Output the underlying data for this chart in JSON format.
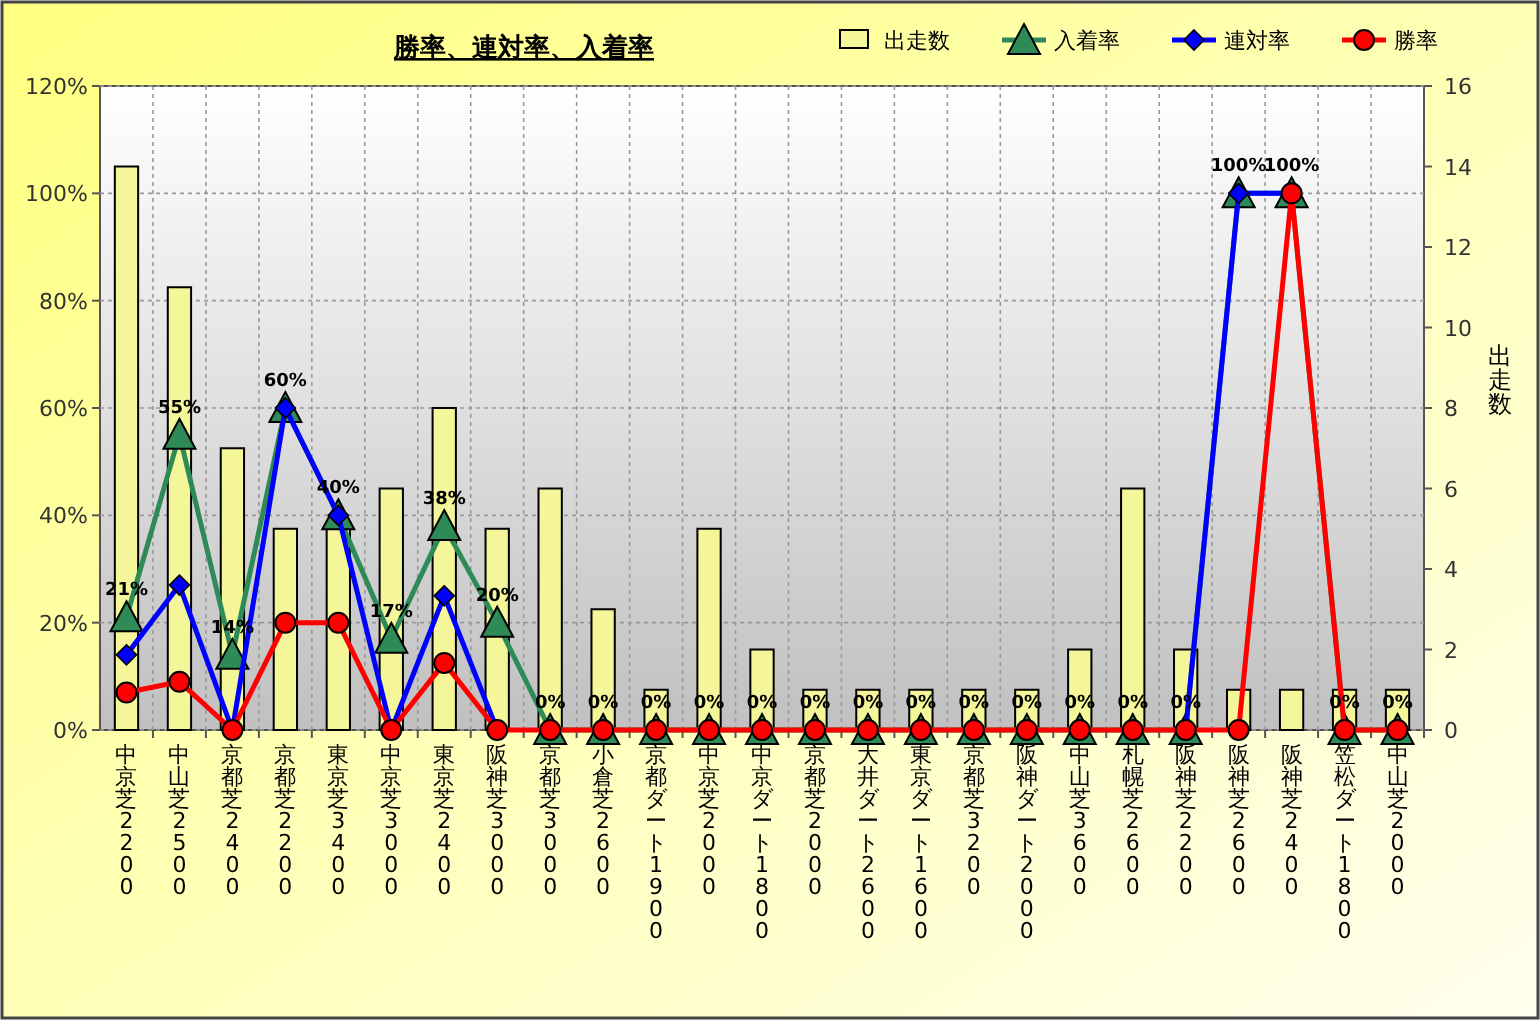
{
  "chart_data": {
    "type": "line",
    "title": "勝率、連対率、入着率",
    "y2label": "出走数",
    "categories": [
      "中京芝2200",
      "中山芝2500",
      "京都芝2400",
      "京都芝2200",
      "東京芝3400",
      "中京芝3000",
      "東京芝2400",
      "阪神芝3000",
      "京都芝3000",
      "小倉芝2600",
      "京都ダート1900",
      "中京芝2000",
      "中京ダート1800",
      "京都芝2000",
      "大井ダート2600",
      "東京ダート1600",
      "京都芝3200",
      "阪神ダート2000",
      "中山芝3600",
      "札幌芝2600",
      "阪神芝2200",
      "阪神芝2600",
      "阪神芝2400",
      "笠松ダート1800",
      "中山芝2000"
    ],
    "series": [
      {
        "name": "出走数",
        "type": "bar",
        "axis": "y2",
        "color": "#f5f59a",
        "values": [
          14,
          11,
          7,
          5,
          5,
          6,
          8,
          5,
          6,
          3,
          1,
          5,
          2,
          1,
          1,
          1,
          1,
          1,
          2,
          6,
          2,
          1,
          1,
          1,
          1
        ]
      },
      {
        "name": "入着率",
        "color": "#2e8b57",
        "marker": "triangle",
        "values": [
          21,
          55,
          14,
          60,
          40,
          17,
          38,
          20,
          0,
          0,
          0,
          0,
          0,
          0,
          0,
          0,
          0,
          0,
          0,
          0,
          0,
          100,
          100,
          0,
          0
        ],
        "value_labels": [
          "21%",
          "55%",
          "14%",
          "60%",
          "40%",
          "17%",
          "38%",
          "20%",
          "0%",
          "0%",
          "0%",
          "0%",
          "0%",
          "0%",
          "0%",
          "0%",
          "0%",
          "0%",
          "0%",
          "0%",
          "0%",
          "100%",
          "100%",
          "0%",
          "0%"
        ]
      },
      {
        "name": "連対率",
        "color": "#0000ff",
        "marker": "diamond",
        "values": [
          14,
          27,
          0,
          60,
          40,
          0,
          25,
          0,
          null,
          null,
          null,
          null,
          null,
          null,
          null,
          null,
          null,
          null,
          null,
          null,
          0,
          100,
          100,
          null,
          null
        ]
      },
      {
        "name": "勝率",
        "color": "#ff0000",
        "marker": "circle",
        "values": [
          7,
          9,
          0,
          20,
          20,
          0,
          12.5,
          0,
          0,
          0,
          0,
          0,
          0,
          0,
          0,
          0,
          0,
          0,
          0,
          0,
          0,
          0,
          100,
          0,
          0
        ]
      }
    ],
    "ylim": [
      0,
      120
    ],
    "yticks": [
      {
        "value": 0,
        "label": "0%"
      },
      {
        "value": 20,
        "label": "20%"
      },
      {
        "value": 40,
        "label": "40%"
      },
      {
        "value": 60,
        "label": "60%"
      },
      {
        "value": 80,
        "label": "80%"
      },
      {
        "value": 100,
        "label": "100%"
      },
      {
        "value": 120,
        "label": "120%"
      }
    ],
    "y2lim": [
      0,
      16
    ],
    "y2ticks": [
      0,
      2,
      4,
      6,
      8,
      10,
      12,
      14,
      16
    ],
    "grid": true,
    "legend": "top right",
    "line_style": "solid"
  }
}
